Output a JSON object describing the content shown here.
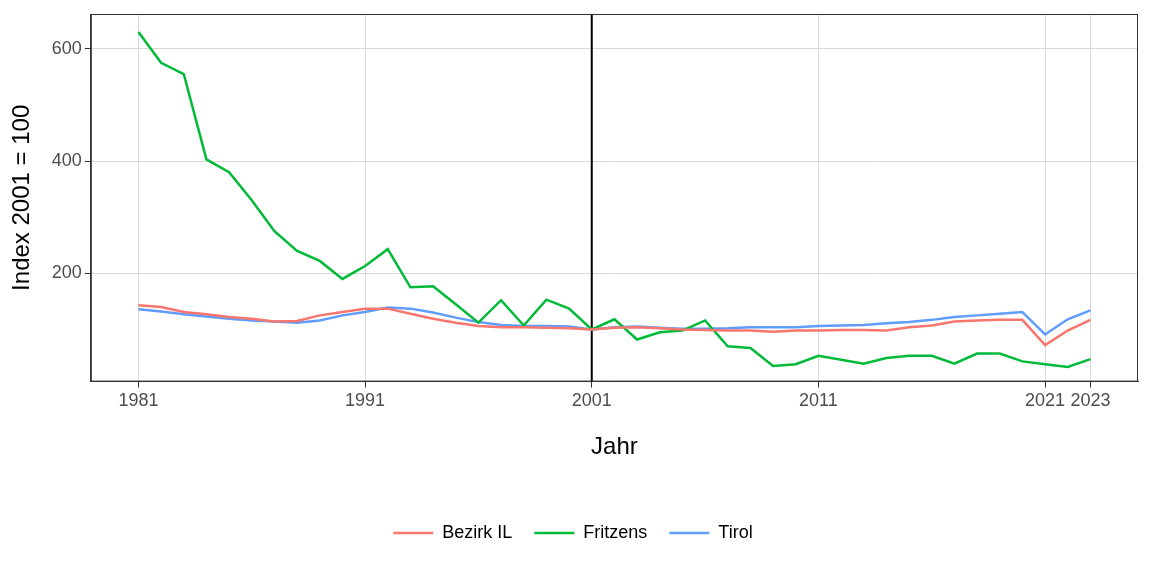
{
  "chart_data": {
    "type": "line",
    "xlabel": "Jahr",
    "ylabel": "Index 2001 = 100",
    "x": [
      1981,
      1982,
      1983,
      1984,
      1985,
      1986,
      1987,
      1988,
      1989,
      1990,
      1991,
      1992,
      1993,
      1994,
      1995,
      1996,
      1997,
      1998,
      1999,
      2000,
      2001,
      2002,
      2003,
      2004,
      2005,
      2006,
      2007,
      2008,
      2009,
      2010,
      2011,
      2012,
      2013,
      2014,
      2015,
      2016,
      2017,
      2018,
      2019,
      2020,
      2021,
      2022,
      2023
    ],
    "series": [
      {
        "name": "Bezirk IL",
        "color": "#F8766D",
        "values": [
          143,
          140,
          131,
          127,
          122,
          119,
          114,
          115,
          125,
          131,
          137,
          137,
          128,
          119,
          112,
          106,
          104,
          104,
          103,
          102,
          100,
          103,
          104,
          102,
          100,
          99,
          98,
          98,
          96,
          98,
          98,
          99,
          99,
          98,
          104,
          107,
          114,
          116,
          117,
          117,
          72,
          98,
          117
        ]
      },
      {
        "name": "Fritzens",
        "color": "#00BA38",
        "values": [
          630,
          575,
          555,
          403,
          380,
          330,
          275,
          240,
          222,
          190,
          213,
          243,
          175,
          177,
          145,
          112,
          152,
          107,
          153,
          137,
          100,
          118,
          82,
          95,
          98,
          116,
          70,
          67,
          35,
          38,
          53,
          46,
          39,
          49,
          53,
          53,
          39,
          57,
          57,
          43,
          38,
          33,
          47
        ]
      },
      {
        "name": "Tirol",
        "color": "#619CFF",
        "values": [
          136,
          132,
          127,
          123,
          119,
          116,
          114,
          112,
          116,
          125,
          131,
          139,
          137,
          130,
          121,
          113,
          108,
          106,
          106,
          105,
          100,
          104,
          105,
          103,
          101,
          101,
          102,
          104,
          104,
          104,
          106,
          107,
          108,
          111,
          113,
          117,
          122,
          125,
          128,
          131,
          91,
          118,
          134
        ]
      }
    ],
    "xlim": [
      1978.9,
      2025.1
    ],
    "xticks": [
      1981,
      1991,
      2001,
      2011,
      2021,
      2023
    ],
    "ylim": [
      7,
      662
    ],
    "yticks": [
      200,
      400,
      600
    ],
    "vline_x": 2001,
    "grid": true,
    "legend": "bottom"
  }
}
